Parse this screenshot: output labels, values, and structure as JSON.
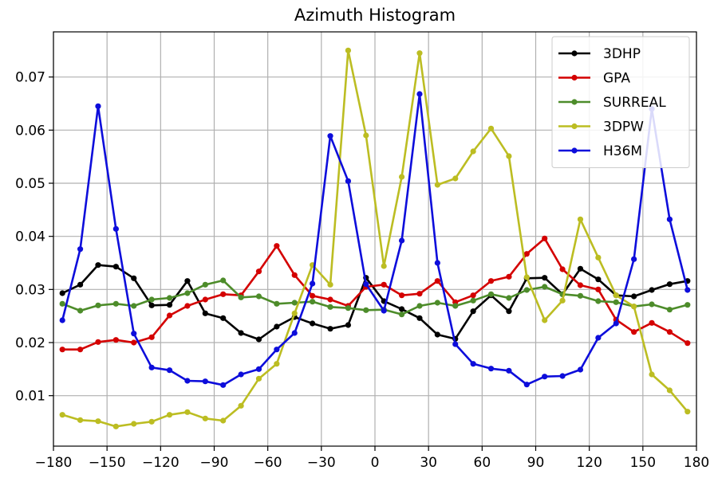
{
  "chart_data": {
    "type": "line",
    "title": "Azimuth Histogram",
    "xlabel": "",
    "ylabel": "",
    "xlim": [
      -180,
      180
    ],
    "ylim": [
      0.0005,
      0.0785
    ],
    "xticks": [
      -180,
      -150,
      -120,
      -90,
      -60,
      -30,
      0,
      30,
      60,
      90,
      120,
      150,
      180
    ],
    "yticks": [
      0.01,
      0.02,
      0.03,
      0.04,
      0.05,
      0.06,
      0.07
    ],
    "ytick_labels": [
      "0.01",
      "0.02",
      "0.03",
      "0.04",
      "0.05",
      "0.06",
      "0.07"
    ],
    "grid": true,
    "legend": "top-right",
    "x": [
      -175,
      -165,
      -155,
      -145,
      -135,
      -125,
      -115,
      -105,
      -95,
      -85,
      -75,
      -65,
      -55,
      -45,
      -35,
      -25,
      -15,
      -5,
      5,
      15,
      25,
      35,
      45,
      55,
      65,
      75,
      85,
      95,
      105,
      115,
      125,
      135,
      145,
      155,
      165,
      175
    ],
    "series": [
      {
        "name": "3DHP",
        "color": "#000000",
        "values": [
          0.0293,
          0.0309,
          0.0346,
          0.0343,
          0.0321,
          0.027,
          0.0271,
          0.0316,
          0.0255,
          0.0246,
          0.0218,
          0.0206,
          0.023,
          0.0248,
          0.0236,
          0.0226,
          0.0233,
          0.0322,
          0.0278,
          0.0263,
          0.0246,
          0.0215,
          0.0207,
          0.0259,
          0.0289,
          0.0259,
          0.0321,
          0.0322,
          0.0291,
          0.0339,
          0.0319,
          0.0289,
          0.0287,
          0.0299,
          0.031,
          0.0316
        ]
      },
      {
        "name": "GPA",
        "color": "#d40000",
        "values": [
          0.0187,
          0.0187,
          0.0201,
          0.0205,
          0.02,
          0.021,
          0.0251,
          0.0269,
          0.0281,
          0.0291,
          0.0289,
          0.0334,
          0.0382,
          0.0327,
          0.0288,
          0.0281,
          0.0269,
          0.0305,
          0.0309,
          0.0289,
          0.0292,
          0.0316,
          0.0276,
          0.0289,
          0.0316,
          0.0324,
          0.0367,
          0.0396,
          0.0338,
          0.0308,
          0.03,
          0.0243,
          0.022,
          0.0237,
          0.022,
          0.0199
        ]
      },
      {
        "name": "SURREAL",
        "color": "#4d8c2a",
        "values": [
          0.0273,
          0.026,
          0.027,
          0.0273,
          0.0269,
          0.0281,
          0.0284,
          0.0293,
          0.0309,
          0.0317,
          0.0285,
          0.0287,
          0.0273,
          0.0275,
          0.0277,
          0.0267,
          0.0265,
          0.0261,
          0.0262,
          0.0253,
          0.0269,
          0.0275,
          0.0269,
          0.0279,
          0.0291,
          0.0284,
          0.0299,
          0.0305,
          0.0291,
          0.0288,
          0.0278,
          0.0276,
          0.0268,
          0.0272,
          0.0262,
          0.0271
        ]
      },
      {
        "name": "3DPW",
        "color": "#bcbd22",
        "values": [
          0.0064,
          0.0054,
          0.0052,
          0.0042,
          0.0047,
          0.0051,
          0.0064,
          0.0069,
          0.0057,
          0.0053,
          0.0081,
          0.0132,
          0.016,
          0.0255,
          0.0346,
          0.0309,
          0.075,
          0.059,
          0.0344,
          0.0512,
          0.0745,
          0.0497,
          0.0509,
          0.056,
          0.0603,
          0.0551,
          0.0323,
          0.0242,
          0.0279,
          0.0432,
          0.036,
          0.0289,
          0.0268,
          0.014,
          0.011,
          0.007
        ]
      },
      {
        "name": "H36M",
        "color": "#0d0ddb",
        "values": [
          0.0242,
          0.0376,
          0.0645,
          0.0414,
          0.0217,
          0.0153,
          0.0148,
          0.0128,
          0.0127,
          0.012,
          0.014,
          0.015,
          0.0187,
          0.0218,
          0.0311,
          0.0589,
          0.0504,
          0.031,
          0.026,
          0.0392,
          0.0668,
          0.035,
          0.0197,
          0.016,
          0.0151,
          0.0147,
          0.0121,
          0.0136,
          0.0137,
          0.0149,
          0.0209,
          0.0236,
          0.0357,
          0.064,
          0.0432,
          0.0299
        ]
      }
    ]
  }
}
